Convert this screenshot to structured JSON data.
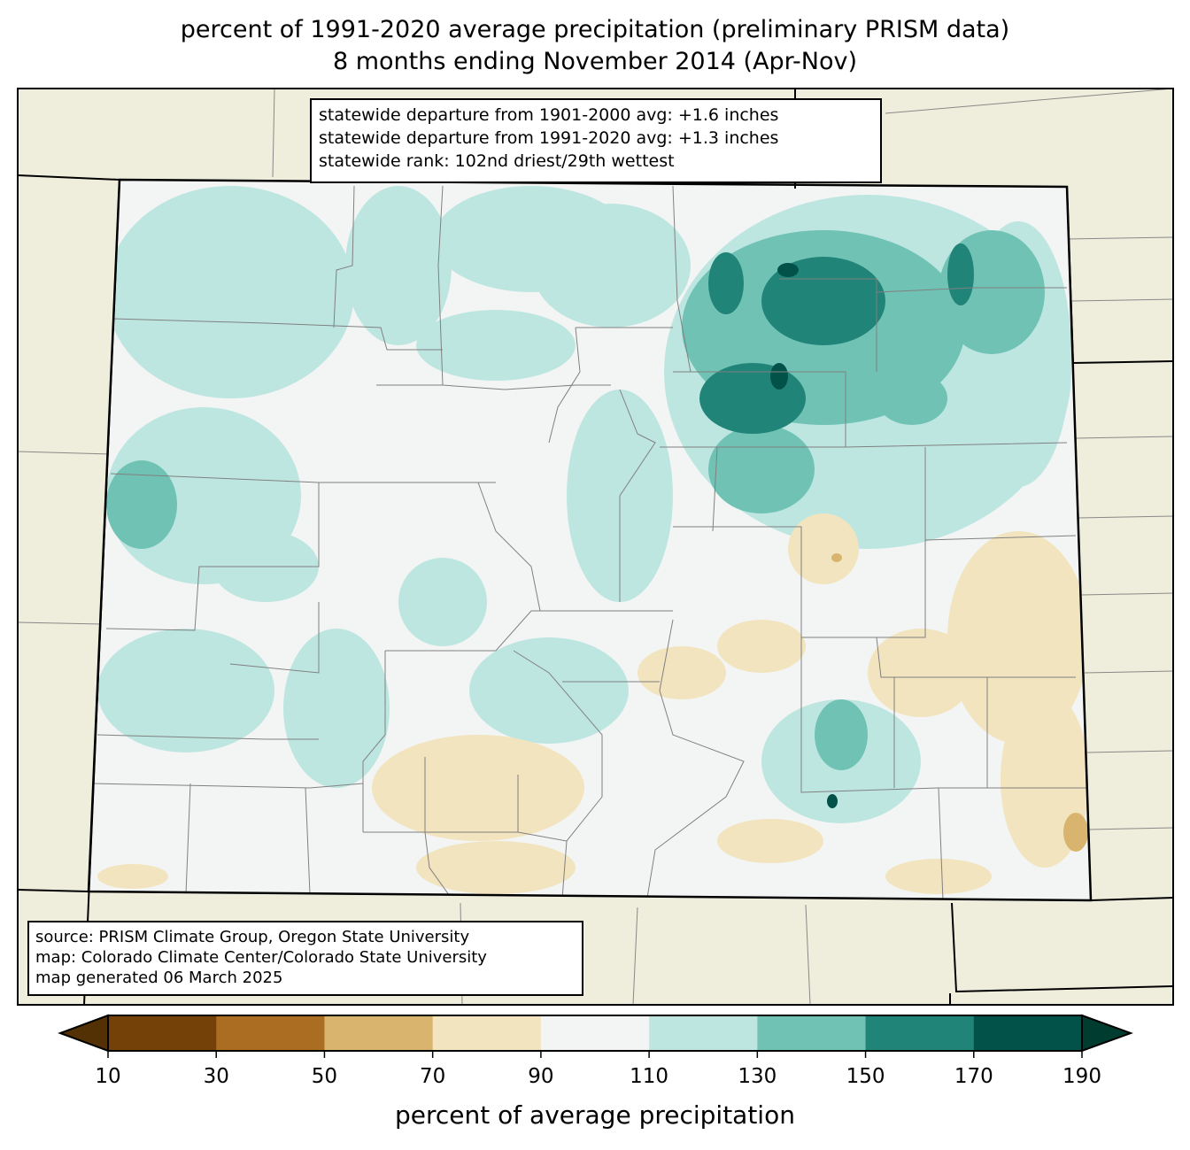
{
  "title": {
    "line1": "percent of 1991-2020 average precipitation (preliminary PRISM data)",
    "line2": "8 months ending November 2014 (Apr-Nov)"
  },
  "stats_box": {
    "line1": "statewide departure from 1901-2000 avg: +1.6 inches",
    "line2": "statewide departure from 1991-2020 avg: +1.3 inches",
    "line3": "statewide rank: 102nd driest/29th wettest"
  },
  "source_box": {
    "line1": "source: PRISM Climate Group, Oregon State University",
    "line2": "map: Colorado Climate Center/Colorado State University",
    "line3": "map generated 06 March 2025"
  },
  "colorbar": {
    "label": "percent of average precipitation",
    "ticks": [
      "10",
      "30",
      "50",
      "70",
      "90",
      "110",
      "130",
      "150",
      "170",
      "190"
    ],
    "colors": [
      "#744108",
      "#ab6d22",
      "#d9b46e",
      "#f2e4be",
      "#f3f5f4",
      "#bee6e1",
      "#70c2b5",
      "#218478",
      "#02524a"
    ],
    "under_color": "#543005",
    "over_color": "#003c30"
  },
  "colors": {
    "background_land": "#efeedd",
    "state_fill": "#f3f5f4"
  }
}
